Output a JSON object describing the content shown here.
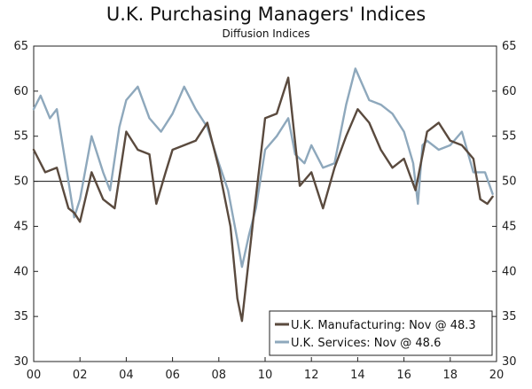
{
  "chart_data": {
    "type": "line",
    "title": "U.K. Purchasing Managers' Indices",
    "subtitle": "Diffusion Indices",
    "xlabel": "",
    "ylabel": "",
    "xlim": [
      2000,
      2020
    ],
    "ylim": [
      30,
      65
    ],
    "x_ticks": [
      "00",
      "02",
      "04",
      "06",
      "08",
      "10",
      "12",
      "14",
      "16",
      "18",
      "20"
    ],
    "y_ticks": [
      30,
      35,
      40,
      45,
      50,
      55,
      60,
      65
    ],
    "reference_line": 50,
    "grid": false,
    "legend_position": "bottom-right",
    "series": [
      {
        "name": "U.K. Manufacturing: Nov @ 48.3",
        "color": "#5a4a3e",
        "x": [
          2000.0,
          2000.5,
          2001.0,
          2001.5,
          2001.75,
          2002.0,
          2002.5,
          2003.0,
          2003.5,
          2004.0,
          2004.5,
          2005.0,
          2005.3,
          2005.7,
          2006.0,
          2006.5,
          2007.0,
          2007.5,
          2008.0,
          2008.5,
          2008.8,
          2009.0,
          2009.5,
          2010.0,
          2010.5,
          2011.0,
          2011.5,
          2012.0,
          2012.5,
          2013.0,
          2013.5,
          2014.0,
          2014.5,
          2015.0,
          2015.5,
          2016.0,
          2016.5,
          2017.0,
          2017.5,
          2018.0,
          2018.5,
          2019.0,
          2019.3,
          2019.6,
          2019.83
        ],
        "values": [
          53.5,
          51.0,
          51.5,
          47.0,
          46.5,
          45.5,
          51.0,
          48.0,
          47.0,
          55.5,
          53.5,
          53.0,
          47.5,
          51.0,
          53.5,
          54.0,
          54.5,
          56.5,
          51.5,
          45.0,
          37.0,
          34.5,
          46.0,
          57.0,
          57.5,
          61.5,
          49.5,
          51.0,
          47.0,
          51.5,
          55.0,
          58.0,
          56.5,
          53.5,
          51.5,
          52.5,
          49.0,
          55.5,
          56.5,
          54.5,
          54.0,
          52.5,
          48.0,
          47.5,
          48.3
        ]
      },
      {
        "name": "U.K. Services: Nov @ 48.6",
        "color": "#8ea8bc",
        "x": [
          2000.0,
          2000.3,
          2000.7,
          2001.0,
          2001.5,
          2001.75,
          2002.0,
          2002.5,
          2003.0,
          2003.3,
          2003.7,
          2004.0,
          2004.5,
          2005.0,
          2005.5,
          2006.0,
          2006.5,
          2007.0,
          2007.5,
          2008.0,
          2008.4,
          2008.8,
          2009.0,
          2009.3,
          2009.6,
          2010.0,
          2010.5,
          2011.0,
          2011.3,
          2011.7,
          2012.0,
          2012.5,
          2013.0,
          2013.5,
          2013.9,
          2014.5,
          2015.0,
          2015.5,
          2016.0,
          2016.4,
          2016.6,
          2016.8,
          2017.0,
          2017.5,
          2018.0,
          2018.5,
          2019.0,
          2019.5,
          2019.83
        ],
        "values": [
          58.0,
          59.5,
          57.0,
          58.0,
          50.0,
          46.0,
          48.0,
          55.0,
          51.0,
          49.0,
          56.0,
          59.0,
          60.5,
          57.0,
          55.5,
          57.5,
          60.5,
          58.0,
          56.0,
          52.0,
          49.0,
          43.5,
          40.5,
          44.0,
          47.0,
          53.5,
          55.0,
          57.0,
          53.0,
          52.0,
          54.0,
          51.5,
          52.0,
          58.5,
          62.5,
          59.0,
          58.5,
          57.5,
          55.5,
          52.0,
          47.5,
          54.0,
          54.5,
          53.5,
          54.0,
          55.5,
          51.0,
          51.0,
          48.6
        ]
      }
    ]
  }
}
